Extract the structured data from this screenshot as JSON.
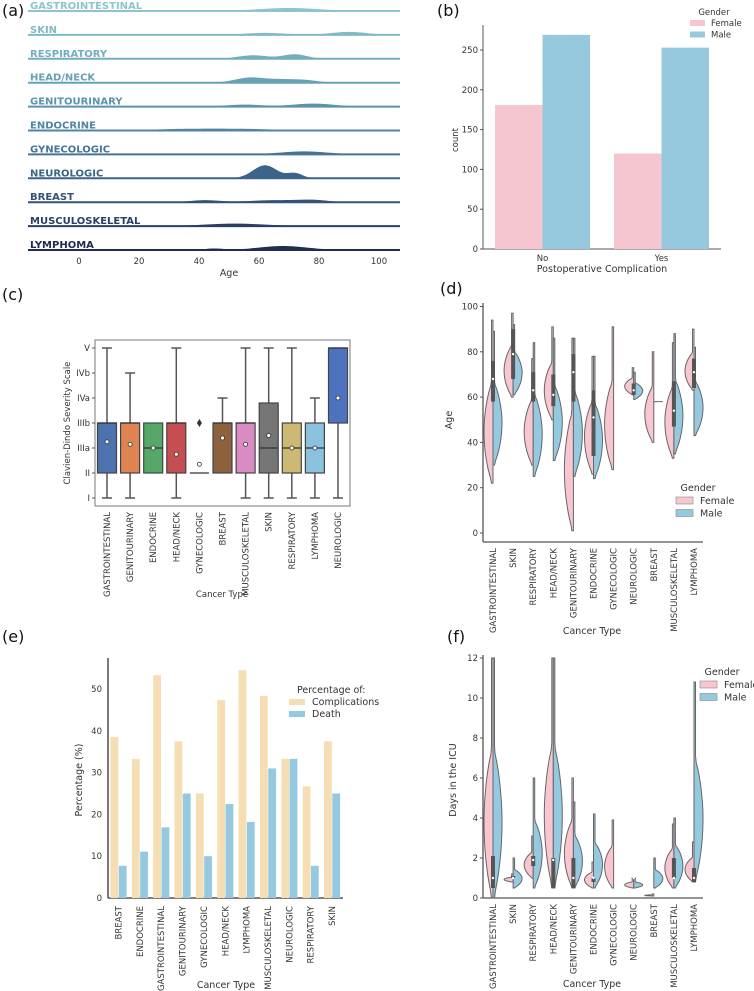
{
  "panel_labels": [
    "(a)",
    "(b)",
    "(c)",
    "(d)",
    "(e)",
    "(f)"
  ],
  "chart_data": [
    {
      "type": "ridgeline",
      "xlabel": "Age",
      "xticks": [
        0,
        20,
        40,
        60,
        80,
        100
      ],
      "rows": [
        {
          "label": "GASTROINTESTINAL",
          "color": "#8cc5cb",
          "peaks": [
            [
              70,
              10,
              3
            ]
          ]
        },
        {
          "label": "SKIN",
          "color": "#80bac4",
          "peaks": [
            [
              62,
              7,
              2
            ],
            [
              90,
              6,
              3
            ]
          ]
        },
        {
          "label": "RESPIRATORY",
          "color": "#72aebe",
          "peaks": [
            [
              58,
              5,
              3.5
            ],
            [
              72,
              4,
              4.5
            ]
          ]
        },
        {
          "label": "HEAD/NECK",
          "color": "#66a1b6",
          "peaks": [
            [
              57,
              5,
              5
            ],
            [
              68,
              5,
              3
            ],
            [
              76,
              4,
              2
            ]
          ]
        },
        {
          "label": "GENITOURINARY",
          "color": "#5b93ad",
          "peaks": [
            [
              55,
              6,
              2
            ],
            [
              78,
              7,
              3
            ]
          ]
        },
        {
          "label": "ENDOCRINE",
          "color": "#5084a3",
          "peaks": [
            [
              35,
              10,
              1.5
            ],
            [
              55,
              10,
              1.5
            ]
          ]
        },
        {
          "label": "GYNECOLOGIC",
          "color": "#457496",
          "peaks": [
            [
              75,
              8,
              3
            ]
          ]
        },
        {
          "label": "NEUROLOGIC",
          "color": "#3b6488",
          "peaks": [
            [
              62,
              4,
              13
            ],
            [
              72,
              2.5,
              5
            ]
          ]
        },
        {
          "label": "BREAST",
          "color": "#33527a",
          "peaks": [
            [
              42,
              5,
              2
            ],
            [
              65,
              8,
              2
            ],
            [
              78,
              5,
              2
            ]
          ]
        },
        {
          "label": "MUSCULOSKELETAL",
          "color": "#2a3f66",
          "peaks": [
            [
              52,
              10,
              2.5
            ]
          ]
        },
        {
          "label": "LYMPHOMA",
          "color": "#202c52",
          "peaks": [
            [
              45,
              3,
              1.5
            ],
            [
              68,
              8,
              4
            ]
          ]
        }
      ]
    },
    {
      "type": "bar",
      "categories": [
        "No",
        "Yes"
      ],
      "series": [
        {
          "name": "Female",
          "color": "#f5c6d0",
          "values": [
            181,
            120
          ]
        },
        {
          "name": "Male",
          "color": "#96c9de",
          "values": [
            269,
            253
          ]
        }
      ],
      "xlabel": "Postoperative Complication",
      "ylabel": "count",
      "yticks": [
        0,
        50,
        100,
        150,
        200,
        250
      ],
      "ylim": [
        0,
        280
      ],
      "legend_title": "Gender",
      "legend": "top-right"
    },
    {
      "type": "box",
      "xlabel": "Cancer Type",
      "ylabel": "Clavien-Dindo Severity Scale",
      "ylevels": [
        "I",
        "II",
        "IIIa",
        "IIIb",
        "IVa",
        "IVb",
        "V"
      ],
      "boxes": [
        {
          "label": "GASTROINTESTINAL",
          "color": "#4c72b0",
          "stats": [
            1,
            2,
            4,
            4,
            7
          ],
          "mean": 3.25,
          "outliers": []
        },
        {
          "label": "GENITOURINARY",
          "color": "#dd8452",
          "stats": [
            1,
            2,
            4,
            4,
            6
          ],
          "mean": 3.15,
          "outliers": []
        },
        {
          "label": "ENDOCRINE",
          "color": "#55a868",
          "stats": [
            2,
            2,
            3,
            4,
            4
          ],
          "mean": 3,
          "outliers": []
        },
        {
          "label": "HEAD/NECK",
          "color": "#c44e52",
          "stats": [
            1,
            2,
            4,
            4,
            7
          ],
          "mean": 2.75,
          "outliers": []
        },
        {
          "label": "GYNECOLOGIC",
          "color": "#8172b3",
          "stats": [
            2,
            2,
            2,
            2,
            2
          ],
          "mean": 2.35,
          "outliers": [
            4
          ]
        },
        {
          "label": "BREAST",
          "color": "#8c613c",
          "stats": [
            2,
            2,
            4,
            4,
            5
          ],
          "mean": 3.4,
          "outliers": []
        },
        {
          "label": "MUSCULOSKELETAL",
          "color": "#da8bc3",
          "stats": [
            1,
            2,
            4,
            4,
            7
          ],
          "mean": 3.15,
          "outliers": []
        },
        {
          "label": "SKIN",
          "color": "#767676",
          "stats": [
            1,
            2,
            3,
            4.8,
            7
          ],
          "mean": 3.5,
          "outliers": []
        },
        {
          "label": "RESPIRATORY",
          "color": "#ccb974",
          "stats": [
            1,
            2,
            3,
            4,
            7
          ],
          "mean": 3,
          "outliers": []
        },
        {
          "label": "LYMPHOMA",
          "color": "#88c2dc",
          "stats": [
            1,
            2,
            3,
            4,
            5
          ],
          "mean": 3,
          "outliers": []
        },
        {
          "label": "NEUROLOGIC",
          "color": "#4f72c0",
          "stats": [
            1,
            4,
            7,
            7,
            7
          ],
          "mean": 5,
          "outliers": []
        }
      ]
    },
    {
      "type": "violin",
      "xlabel": "Cancer Type",
      "ylabel": "Age",
      "yticks": [
        0,
        20,
        40,
        60,
        80,
        100
      ],
      "legend_title": "Gender",
      "legend": [
        "Female",
        "Male"
      ],
      "colors": [
        "#f7c6d0",
        "#94c9df"
      ],
      "categories": [
        {
          "label": "GASTROINTESTINAL",
          "female": [
            22,
            94
          ],
          "male": [
            30,
            89
          ],
          "box": [
            58,
            68,
            76
          ]
        },
        {
          "label": "SKIN",
          "female": [
            60,
            97
          ],
          "male": [
            61,
            92
          ],
          "box": [
            68,
            79,
            90
          ]
        },
        {
          "label": "RESPIRATORY",
          "female": [
            30,
            77
          ],
          "male": [
            25,
            84
          ],
          "box": [
            58,
            63,
            71
          ]
        },
        {
          "label": "HEAD/NECK",
          "female": [
            50,
            91
          ],
          "male": [
            32,
            86
          ],
          "box": [
            56,
            61,
            70
          ]
        },
        {
          "label": "GENITOURINARY",
          "female": [
            1,
            86
          ],
          "male": [
            25,
            86
          ],
          "box": [
            58,
            71,
            79
          ]
        },
        {
          "label": "ENDOCRINE",
          "female": [
            26,
            78
          ],
          "male": [
            24,
            78
          ],
          "box": [
            34,
            51,
            63
          ]
        },
        {
          "label": "GYNECOLOGIC",
          "female": [
            28,
            91
          ],
          "male": null,
          "box": null
        },
        {
          "label": "NEUROLOGIC",
          "female": [
            61,
            73
          ],
          "male": [
            59,
            71
          ],
          "box": [
            61,
            63,
            66
          ]
        },
        {
          "label": "BREAST",
          "female": [
            40,
            80
          ],
          "male": [
            58,
            58
          ],
          "box": null
        },
        {
          "label": "MUSCULOSKELETAL",
          "female": [
            33,
            84
          ],
          "male": [
            35,
            88
          ],
          "box": [
            47,
            54,
            67
          ]
        },
        {
          "label": "LYMPHOMA",
          "female": [
            63,
            90
          ],
          "male": [
            43,
            82
          ],
          "box": [
            64,
            71,
            77
          ]
        }
      ]
    },
    {
      "type": "bar",
      "xlabel": "Cancer Type",
      "ylabel": "Percentage (%)",
      "yticks": [
        0,
        10,
        20,
        30,
        40,
        50
      ],
      "ylim": [
        0,
        57
      ],
      "legend_title": "Percentage of:",
      "legend": "top-right",
      "categories": [
        "BREAST",
        "ENDOCRINE",
        "GASTROINTESTINAL",
        "GENITOURINARY",
        "GYNECOLOGIC",
        "HEAD/NECK",
        "LYMPHOMA",
        "MUSCULOSKELETAL",
        "NEUROLOGIC",
        "RESPIRATORY",
        "SKIN"
      ],
      "series": [
        {
          "name": "Complications",
          "color": "#f5deb3",
          "values": [
            38.5,
            33.3,
            53.3,
            37.5,
            25.0,
            47.4,
            54.5,
            48.3,
            33.3,
            26.7,
            37.5
          ]
        },
        {
          "name": "Death",
          "color": "#94c9df",
          "values": [
            7.7,
            11.1,
            16.9,
            25.0,
            10.0,
            22.5,
            18.2,
            31.0,
            33.3,
            7.7,
            25.0
          ]
        }
      ]
    },
    {
      "type": "violin",
      "xlabel": "Cancer Type",
      "ylabel": "Days in the ICU",
      "yticks": [
        0,
        2,
        4,
        6,
        8,
        10,
        12
      ],
      "legend_title": "Gender",
      "legend": [
        "Female",
        "Male"
      ],
      "colors": [
        "#f7c6d0",
        "#94c9df"
      ],
      "categories": [
        {
          "label": "GASTROINTESTINAL",
          "female": [
            0,
            12
          ],
          "male": [
            0,
            12
          ],
          "box": [
            0.5,
            1,
            2.1
          ]
        },
        {
          "label": "SKIN",
          "female": [
            0.8,
            1.2
          ],
          "male": [
            0.5,
            2
          ],
          "box": [
            1,
            1,
            1.1
          ]
        },
        {
          "label": "RESPIRATORY",
          "female": [
            1,
            3.1
          ],
          "male": [
            0.5,
            6
          ],
          "box": [
            1.6,
            1.9,
            2.1
          ]
        },
        {
          "label": "HEAD/NECK",
          "female": [
            0.5,
            12
          ],
          "male": [
            0.5,
            12
          ],
          "box": [
            0.5,
            1.9,
            2
          ]
        },
        {
          "label": "GENITOURINARY",
          "female": [
            0.5,
            6
          ],
          "male": [
            0.5,
            4.8
          ],
          "box": [
            0.5,
            1,
            2
          ]
        },
        {
          "label": "ENDOCRINE",
          "female": [
            0.5,
            1.8
          ],
          "male": [
            0.5,
            4.2
          ],
          "box": [
            0.8,
            1,
            1
          ]
        },
        {
          "label": "GYNECOLOGIC",
          "female": [
            0.5,
            3.9
          ],
          "male": null,
          "box": null
        },
        {
          "label": "NEUROLOGIC",
          "female": [
            0.5,
            1
          ],
          "male": [
            0.5,
            1
          ],
          "box": [
            1,
            1,
            1
          ]
        },
        {
          "label": "BREAST",
          "female": [
            0.1,
            0.2
          ],
          "male": [
            0.5,
            2
          ],
          "box": null
        },
        {
          "label": "MUSCULOSKELETAL",
          "female": [
            0.5,
            3.7
          ],
          "male": [
            0.5,
            4
          ],
          "box": [
            1,
            1,
            2
          ]
        },
        {
          "label": "LYMPHOMA",
          "female": [
            0.8,
            2.8
          ],
          "male": [
            0.8,
            10.8
          ],
          "box": [
            0.8,
            1,
            1.5
          ]
        }
      ]
    }
  ]
}
